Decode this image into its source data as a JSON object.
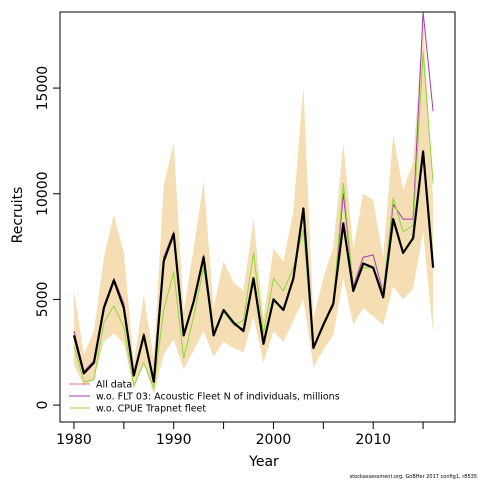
{
  "chart_data": {
    "type": "line",
    "xlabel": "Year",
    "ylabel": "Recruits",
    "xlim": [
      1978.6,
      2018.2
    ],
    "ylim": [
      -800,
      18600
    ],
    "x_ticks": [
      1980,
      1990,
      2000,
      2010
    ],
    "y_ticks": [
      0,
      5000,
      10000,
      15000
    ],
    "x": [
      1980,
      1981,
      1982,
      1983,
      1984,
      1985,
      1986,
      1987,
      1988,
      1989,
      1990,
      1991,
      1992,
      1993,
      1994,
      1995,
      1996,
      1997,
      1998,
      1999,
      2000,
      2001,
      2002,
      2003,
      2004,
      2005,
      2006,
      2007,
      2008,
      2009,
      2010,
      2011,
      2012,
      2013,
      2014,
      2015,
      2016
    ],
    "band": {
      "color": "#f5deb3",
      "lower": [
        1900,
        900,
        1200,
        3000,
        3400,
        2900,
        800,
        2000,
        500,
        2400,
        3100,
        1700,
        2600,
        3500,
        2300,
        3000,
        2700,
        2500,
        4200,
        2000,
        3500,
        3000,
        4000,
        5000,
        1800,
        2600,
        3300,
        6000,
        3800,
        4600,
        4200,
        3800,
        5600,
        5000,
        5500,
        8200,
        3400
      ],
      "upper": [
        5400,
        2400,
        3500,
        7000,
        9000,
        7200,
        2000,
        5200,
        2200,
        10400,
        12400,
        4400,
        7400,
        10600,
        4600,
        6800,
        5800,
        5400,
        8800,
        4100,
        7400,
        6800,
        9200,
        15100,
        4100,
        6000,
        7500,
        12400,
        7400,
        10000,
        9700,
        7000,
        12800,
        10200,
        11500,
        18400,
        9700
      ]
    },
    "series": [
      {
        "name": "All data",
        "color": "#e8747c",
        "width": 1,
        "values": [
          3300,
          1500,
          2000,
          4600,
          5900,
          4600,
          1400,
          3300,
          1100,
          6800,
          8100,
          3300,
          4900,
          7000,
          3300,
          4500,
          3900,
          3500,
          6000,
          2900,
          5000,
          4500,
          6000,
          9200,
          2700,
          3800,
          4800,
          8600,
          5400,
          6700,
          6500,
          5100,
          8800,
          7200,
          7900,
          12000,
          6500
        ]
      },
      {
        "name": "w.o. FLT 03: Acoustic Fleet   N of individuals, millions",
        "color": "#a33bb0",
        "width": 1,
        "values": [
          3500,
          1600,
          2100,
          4700,
          6000,
          4800,
          1500,
          3400,
          1200,
          7000,
          8200,
          3400,
          4900,
          7100,
          3400,
          4500,
          3800,
          3600,
          6000,
          3000,
          5000,
          4500,
          6000,
          9300,
          2800,
          3800,
          4700,
          10000,
          5600,
          7000,
          7100,
          5300,
          9500,
          8800,
          8800,
          18600,
          13900
        ]
      },
      {
        "name": "w.o. CPUE Trapnet fleet",
        "color": "#8ed63c",
        "width": 1,
        "values": [
          2800,
          1100,
          1200,
          3900,
          4700,
          3700,
          900,
          2000,
          800,
          4500,
          6300,
          2200,
          4200,
          6500,
          3400,
          4400,
          3800,
          4000,
          7200,
          3400,
          6000,
          5400,
          6500,
          8300,
          2700,
          3700,
          4800,
          10500,
          5500,
          6500,
          6500,
          5300,
          9800,
          8200,
          8500,
          16700,
          10500
        ]
      },
      {
        "name": "",
        "color": "#000000",
        "width": 2.2,
        "values": [
          3300,
          1500,
          2000,
          4600,
          5900,
          4600,
          1400,
          3300,
          1100,
          6800,
          8100,
          3300,
          4900,
          7000,
          3300,
          4500,
          3900,
          3500,
          6000,
          2900,
          5000,
          4500,
          6000,
          9300,
          2700,
          3800,
          4800,
          8600,
          5400,
          6700,
          6500,
          5100,
          8800,
          7200,
          7900,
          12000,
          6500
        ]
      }
    ],
    "legend": {
      "placement": "bottom-left",
      "entries": [
        {
          "label": "All data",
          "color": "#e8747c"
        },
        {
          "label": "w.o. FLT 03: Acoustic Fleet   N of individuals, millions",
          "color": "#a33bb0"
        },
        {
          "label": "w.o. CPUE Trapnet fleet",
          "color": "#8ed63c"
        }
      ]
    },
    "grid": false
  },
  "footer": {
    "credit": "stockassessment.org, GoBHer 2017 config1, r8535"
  }
}
